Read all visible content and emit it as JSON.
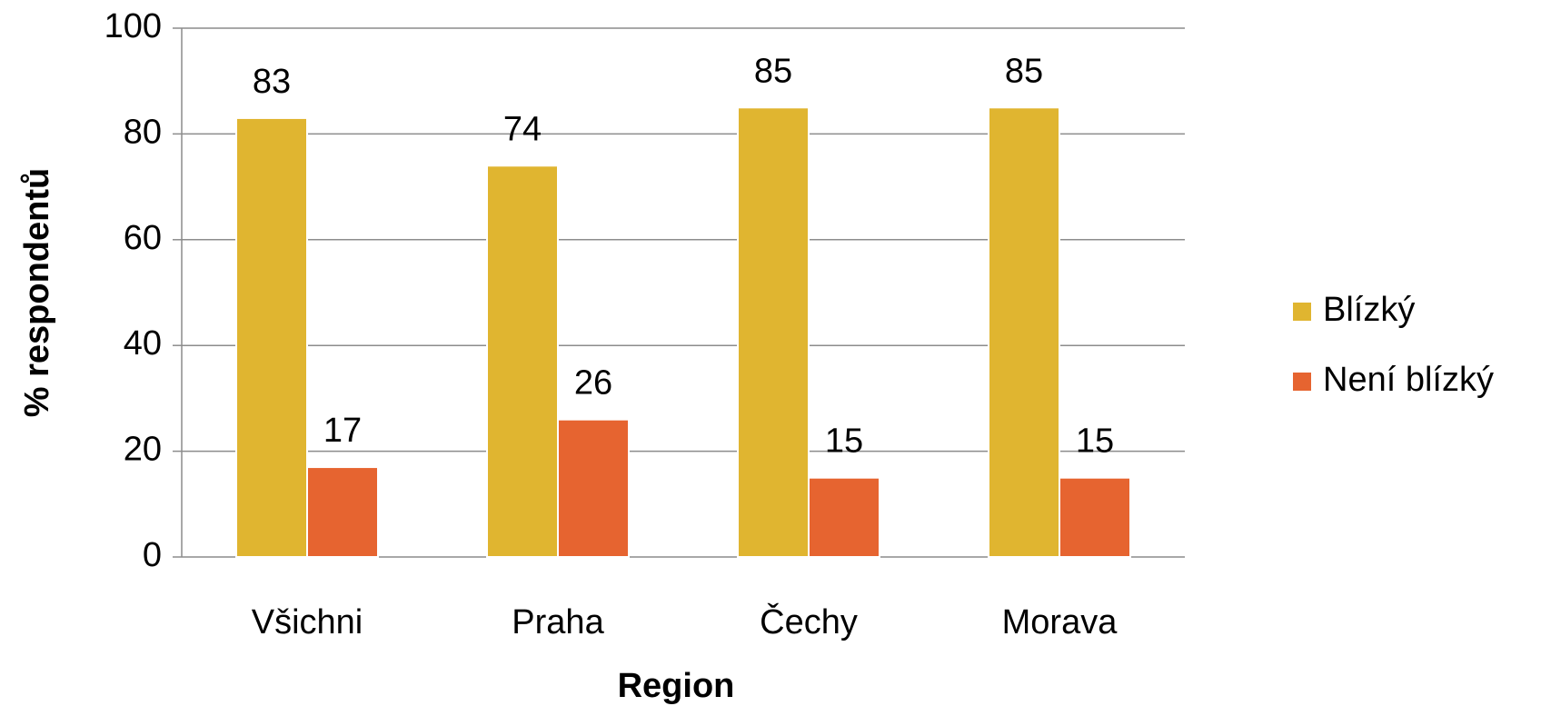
{
  "chart_data": {
    "type": "bar",
    "x_label": "Region",
    "y_label": "% respondentů",
    "categories": [
      "Všichni",
      "Praha",
      "Čechy",
      "Morava"
    ],
    "series": [
      {
        "name": "Blízký",
        "color": "#e0b530",
        "values": [
          83,
          74,
          85,
          85
        ]
      },
      {
        "name": "Není blízký",
        "color": "#e66430",
        "values": [
          17,
          26,
          15,
          15
        ]
      }
    ],
    "ylim": [
      0,
      100
    ],
    "yticks": [
      0,
      20,
      40,
      60,
      80,
      100
    ],
    "grid": true,
    "legend": "right"
  }
}
